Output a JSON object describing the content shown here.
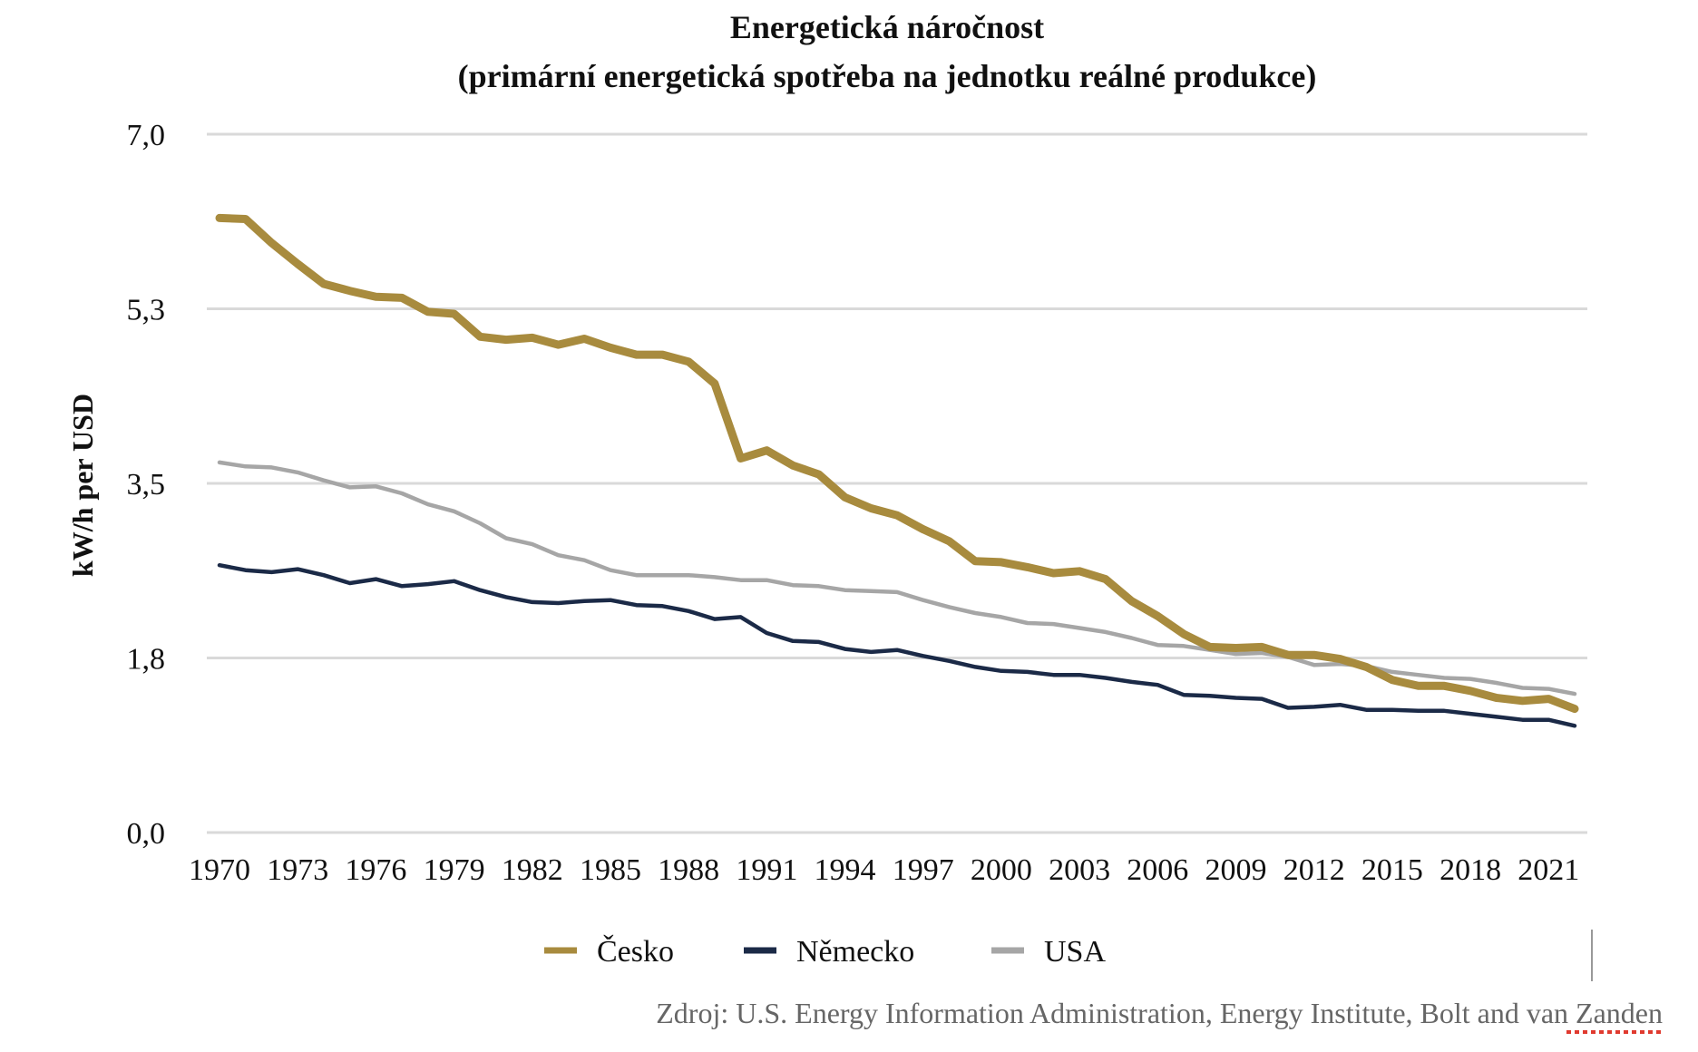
{
  "chart_data": {
    "type": "line",
    "title": [
      "Energetická náročnost",
      "(primární energetická spotřeba na jednotku reálné produkce)"
    ],
    "ylabel": "kW/h per USD",
    "xlabel": "",
    "ylim": [
      0,
      7.0
    ],
    "yticks": [
      "0,0",
      "1,8",
      "3,5",
      "5,3",
      "7,0"
    ],
    "ytick_values": [
      0,
      1.75,
      3.5,
      5.25,
      7.0
    ],
    "x": [
      1970,
      1971,
      1972,
      1973,
      1974,
      1975,
      1976,
      1977,
      1978,
      1979,
      1980,
      1981,
      1982,
      1983,
      1984,
      1985,
      1986,
      1987,
      1988,
      1989,
      1990,
      1991,
      1992,
      1993,
      1994,
      1995,
      1996,
      1997,
      1998,
      1999,
      2000,
      2001,
      2002,
      2003,
      2004,
      2005,
      2006,
      2007,
      2008,
      2009,
      2010,
      2011,
      2012,
      2013,
      2014,
      2015,
      2016,
      2017,
      2018,
      2019,
      2020,
      2021,
      2022
    ],
    "xticks": [
      "1970",
      "1973",
      "1976",
      "1979",
      "1982",
      "1985",
      "1988",
      "1991",
      "1994",
      "1997",
      "2000",
      "2003",
      "2006",
      "2009",
      "2012",
      "2015",
      "2018",
      "2021"
    ],
    "xtick_values": [
      1970,
      1973,
      1976,
      1979,
      1982,
      1985,
      1988,
      1991,
      1994,
      1997,
      2000,
      2003,
      2006,
      2009,
      2012,
      2015,
      2018,
      2021
    ],
    "grid": true,
    "legend_position": "bottom",
    "series": [
      {
        "name": "Česko",
        "color": "#A88B3E",
        "values": [
          6.16,
          6.15,
          5.91,
          5.7,
          5.5,
          5.43,
          5.37,
          5.36,
          5.22,
          5.2,
          4.97,
          4.94,
          4.96,
          4.89,
          4.95,
          4.86,
          4.79,
          4.79,
          4.72,
          4.5,
          3.75,
          3.83,
          3.68,
          3.59,
          3.36,
          3.25,
          3.18,
          3.04,
          2.92,
          2.72,
          2.71,
          2.66,
          2.6,
          2.62,
          2.54,
          2.32,
          2.17,
          1.99,
          1.86,
          1.85,
          1.86,
          1.78,
          1.78,
          1.74,
          1.66,
          1.53,
          1.47,
          1.47,
          1.42,
          1.35,
          1.32,
          1.34,
          1.24
        ]
      },
      {
        "name": "Německo",
        "color": "#1B2A47",
        "values": [
          2.68,
          2.63,
          2.61,
          2.64,
          2.58,
          2.5,
          2.54,
          2.47,
          2.49,
          2.52,
          2.43,
          2.36,
          2.31,
          2.3,
          2.32,
          2.33,
          2.28,
          2.27,
          2.22,
          2.14,
          2.16,
          2.0,
          1.92,
          1.91,
          1.84,
          1.81,
          1.83,
          1.77,
          1.72,
          1.66,
          1.62,
          1.61,
          1.58,
          1.58,
          1.55,
          1.51,
          1.48,
          1.38,
          1.37,
          1.35,
          1.34,
          1.25,
          1.26,
          1.28,
          1.23,
          1.23,
          1.22,
          1.22,
          1.19,
          1.16,
          1.13,
          1.13,
          1.07
        ]
      },
      {
        "name": "USA",
        "color": "#A6A6A6",
        "values": [
          3.71,
          3.67,
          3.66,
          3.61,
          3.53,
          3.46,
          3.47,
          3.4,
          3.29,
          3.22,
          3.1,
          2.95,
          2.89,
          2.78,
          2.73,
          2.63,
          2.58,
          2.58,
          2.58,
          2.56,
          2.53,
          2.53,
          2.48,
          2.47,
          2.43,
          2.42,
          2.41,
          2.33,
          2.26,
          2.2,
          2.16,
          2.1,
          2.09,
          2.05,
          2.01,
          1.95,
          1.88,
          1.87,
          1.83,
          1.79,
          1.8,
          1.76,
          1.68,
          1.69,
          1.67,
          1.61,
          1.58,
          1.55,
          1.54,
          1.5,
          1.45,
          1.44,
          1.39
        ]
      }
    ]
  },
  "footer": {
    "source": "Zdroj: U.S. Energy Information Administration, Energy Institute, Bolt and van Zanden"
  }
}
